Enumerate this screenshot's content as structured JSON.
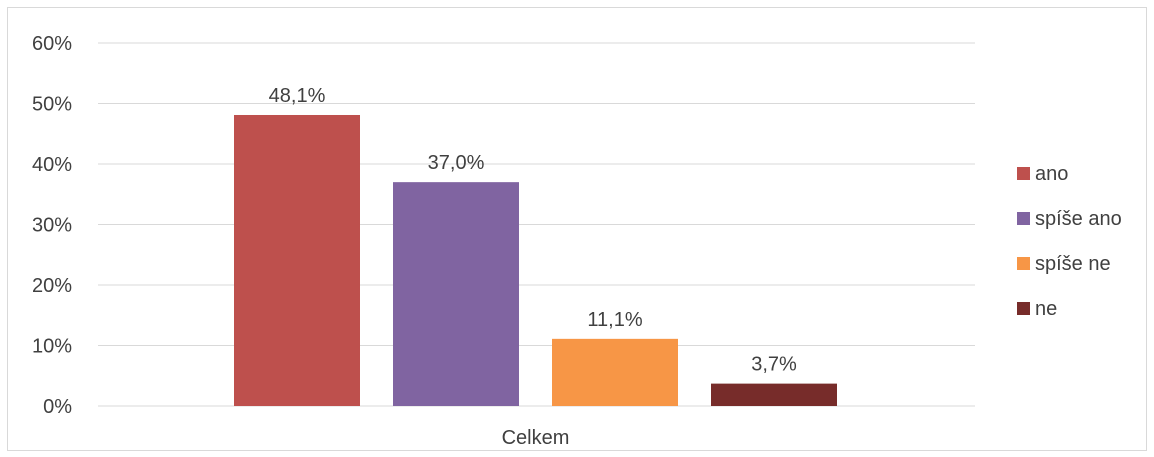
{
  "chart_data": {
    "type": "bar",
    "categories": [
      "Celkem"
    ],
    "series": [
      {
        "name": "ano",
        "values": [
          48.1
        ],
        "label": "48,1%",
        "color": "#be504d"
      },
      {
        "name": "spíše ano",
        "values": [
          37.0
        ],
        "label": "37,0%",
        "color": "#8064a1"
      },
      {
        "name": "spíše ne",
        "values": [
          11.1
        ],
        "label": "11,1%",
        "color": "#f79646"
      },
      {
        "name": "ne",
        "values": [
          3.7
        ],
        "label": "3,7%",
        "color": "#772c2a"
      }
    ],
    "ylim": [
      0,
      60
    ],
    "yticks": [
      {
        "value": 0,
        "label": "0%"
      },
      {
        "value": 10,
        "label": "10%"
      },
      {
        "value": 20,
        "label": "20%"
      },
      {
        "value": 30,
        "label": "30%"
      },
      {
        "value": 40,
        "label": "40%"
      },
      {
        "value": 50,
        "label": "50%"
      },
      {
        "value": 60,
        "label": "60%"
      }
    ],
    "grid": true,
    "legend": "right",
    "title": "",
    "xlabel": "",
    "ylabel": ""
  }
}
